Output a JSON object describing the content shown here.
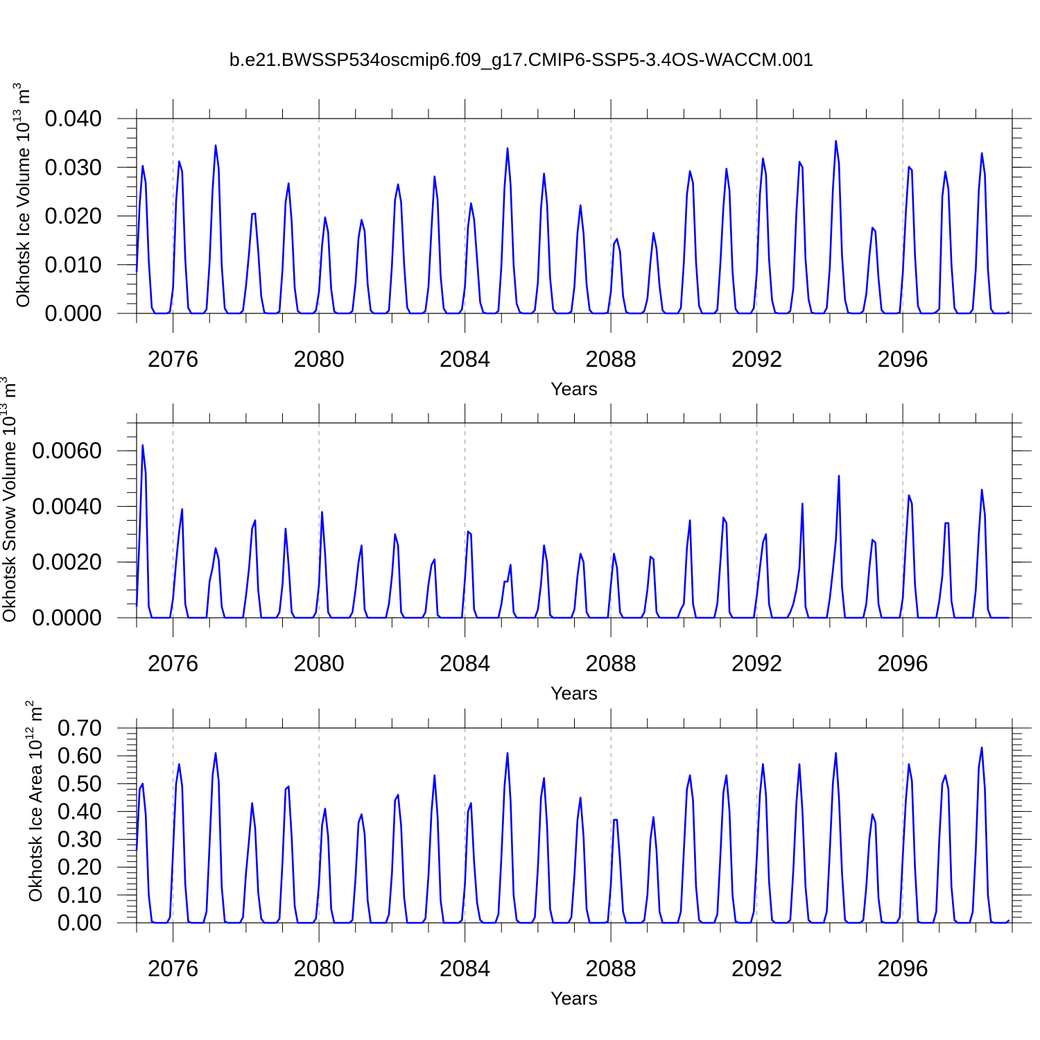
{
  "title": "b.e21.BWSSP534oscmip6.f09_g17.CMIP6-SSP5-3.4OS-WACCM.001",
  "colors": {
    "series": "#0000ff",
    "frame": "#000000",
    "grid": "#9a9a9a"
  },
  "chart_data": [
    {
      "type": "line",
      "name": "okhotsk-ice-volume",
      "title": "",
      "xlabel": "Years",
      "ylabel_main": "Okhotsk Ice Volume 10",
      "ylabel_sup": "13",
      "ylabel_unit": "m",
      "ylabel_unit_sup": "3",
      "xlim": [
        2075,
        2099
      ],
      "ylim": [
        0,
        0.04
      ],
      "x_ticks": [
        2076,
        2080,
        2084,
        2088,
        2092,
        2096
      ],
      "x_tick_labels": [
        "2076",
        "2080",
        "2084",
        "2088",
        "2092",
        "2096"
      ],
      "y_ticks": [
        0,
        0.01,
        0.02,
        0.03,
        0.04
      ],
      "y_tick_labels": [
        "0.000",
        "0.010",
        "0.020",
        "0.030",
        "0.040"
      ],
      "y_minor_step": 0.002,
      "grid": "vertical dashed at major x ticks",
      "series": [
        {
          "name": "Okhotsk Ice Volume",
          "start_year": 2075,
          "step": 0.08333333,
          "values": [
            0.0085,
            0.0222,
            0.0303,
            0.0268,
            0.0109,
            0.0012,
            0.0,
            0.0,
            0.0,
            0.0,
            0.0,
            0.0004,
            0.0053,
            0.023,
            0.0312,
            0.0291,
            0.0112,
            0.0011,
            0.0,
            0.0,
            0.0,
            0.0,
            0.0,
            0.0008,
            0.0104,
            0.0254,
            0.0345,
            0.0298,
            0.0099,
            0.001,
            0.0,
            0.0,
            0.0,
            0.0,
            0.0,
            0.0006,
            0.0057,
            0.0125,
            0.0204,
            0.0205,
            0.0128,
            0.0035,
            0.0002,
            0.0,
            0.0,
            0.0,
            0.0,
            0.0004,
            0.0091,
            0.0228,
            0.0267,
            0.0189,
            0.0053,
            0.0005,
            0.0,
            0.0,
            0.0,
            0.0,
            0.0,
            0.0006,
            0.0045,
            0.0139,
            0.0197,
            0.0167,
            0.005,
            0.0004,
            0.0,
            0.0,
            0.0,
            0.0,
            0.0,
            0.0005,
            0.0061,
            0.0155,
            0.0192,
            0.0169,
            0.006,
            0.0006,
            0.0,
            0.0,
            0.0,
            0.0,
            0.0,
            0.0006,
            0.01,
            0.0233,
            0.0265,
            0.0228,
            0.01,
            0.0012,
            0.0,
            0.0,
            0.0,
            0.0,
            0.0,
            0.0005,
            0.0055,
            0.0175,
            0.0281,
            0.0233,
            0.0077,
            0.001,
            0.0,
            0.0,
            0.0,
            0.0,
            0.0,
            0.0008,
            0.0055,
            0.0177,
            0.0226,
            0.0193,
            0.011,
            0.0023,
            0.0002,
            0.0,
            0.0,
            0.0,
            0.0,
            0.0005,
            0.01,
            0.0258,
            0.0339,
            0.0265,
            0.01,
            0.002,
            0.0003,
            0.0,
            0.0,
            0.0,
            0.0,
            0.0007,
            0.0065,
            0.0215,
            0.0287,
            0.0225,
            0.0073,
            0.0008,
            0.0,
            0.0,
            0.0,
            0.0,
            0.0,
            0.0004,
            0.0055,
            0.0165,
            0.0222,
            0.0164,
            0.006,
            0.0007,
            0.0,
            0.0,
            0.0,
            0.0,
            0.0,
            0.0002,
            0.0045,
            0.0143,
            0.0153,
            0.0127,
            0.0035,
            0.0003,
            0.0,
            0.0,
            0.0,
            0.0,
            0.0,
            0.0005,
            0.003,
            0.0105,
            0.0165,
            0.0133,
            0.0056,
            0.0006,
            0.0,
            0.0,
            0.0,
            0.0,
            0.0,
            0.0011,
            0.0105,
            0.0244,
            0.0292,
            0.0268,
            0.0105,
            0.0015,
            0.0,
            0.0,
            0.0,
            0.0,
            0.0,
            0.0007,
            0.0102,
            0.0219,
            0.0297,
            0.0252,
            0.0086,
            0.0009,
            0.0,
            0.0,
            0.0,
            0.0,
            0.0,
            0.0011,
            0.0085,
            0.0244,
            0.0318,
            0.0286,
            0.0112,
            0.0027,
            0.0002,
            0.0,
            0.0,
            0.0,
            0.0,
            0.0005,
            0.0052,
            0.0207,
            0.0311,
            0.03,
            0.0112,
            0.0029,
            0.0002,
            0.0,
            0.0,
            0.0,
            0.0,
            0.0011,
            0.0095,
            0.0254,
            0.0354,
            0.0309,
            0.012,
            0.0028,
            0.0002,
            0.0,
            0.0,
            0.0,
            0.0,
            0.0005,
            0.004,
            0.0117,
            0.0176,
            0.0168,
            0.0073,
            0.0007,
            0.0,
            0.0,
            0.0,
            0.0,
            0.0,
            0.0002,
            0.0083,
            0.0207,
            0.0301,
            0.0294,
            0.012,
            0.0015,
            0.0,
            0.0,
            0.0,
            0.0,
            0.0,
            0.0003,
            0.0009,
            0.024,
            0.0291,
            0.0256,
            0.0101,
            0.0011,
            0.0,
            0.0,
            0.0,
            0.0,
            0.0,
            0.0008,
            0.0091,
            0.0253,
            0.0329,
            0.0285,
            0.0091,
            0.0009,
            0.0,
            0.0,
            0.0,
            0.0,
            0.0,
            0.0003
          ]
        }
      ]
    },
    {
      "type": "line",
      "name": "okhotsk-snow-volume",
      "title": "",
      "xlabel": "Years",
      "ylabel_main": "Okhotsk Snow Volume 10",
      "ylabel_sup": "13",
      "ylabel_unit": "m",
      "ylabel_unit_sup": "3",
      "xlim": [
        2075,
        2099
      ],
      "ylim": [
        0,
        0.007
      ],
      "x_ticks": [
        2076,
        2080,
        2084,
        2088,
        2092,
        2096
      ],
      "x_tick_labels": [
        "2076",
        "2080",
        "2084",
        "2088",
        "2092",
        "2096"
      ],
      "y_ticks": [
        0,
        0.002,
        0.004,
        0.006
      ],
      "y_tick_labels": [
        "0.0000",
        "0.0020",
        "0.0040",
        "0.0060"
      ],
      "y_minor_step": 0.0005,
      "grid": "vertical dashed at major x ticks",
      "series": [
        {
          "name": "Okhotsk Snow Volume",
          "start_year": 2075,
          "step": 0.08333333,
          "values": [
            0.0004,
            0.003,
            0.0062,
            0.0052,
            0.0004,
            0.0,
            0.0,
            0.0,
            0.0,
            0.0,
            0.0,
            0.0,
            0.0007,
            0.002,
            0.0031,
            0.0039,
            0.0005,
            0.0,
            0.0,
            0.0,
            0.0,
            0.0,
            0.0,
            0.0,
            0.0013,
            0.0018,
            0.0025,
            0.0021,
            0.0004,
            0.0,
            0.0,
            0.0,
            0.0,
            0.0,
            0.0,
            0.0,
            0.0008,
            0.0018,
            0.0032,
            0.0035,
            0.001,
            0.0,
            0.0,
            0.0,
            0.0,
            0.0,
            0.0,
            0.0002,
            0.0012,
            0.0032,
            0.0019,
            0.0002,
            0.0,
            0.0,
            0.0,
            0.0,
            0.0,
            0.0,
            0.0,
            0.0002,
            0.0012,
            0.0038,
            0.0023,
            0.0002,
            0.0,
            0.0,
            0.0,
            0.0,
            0.0,
            0.0,
            0.0,
            0.0002,
            0.001,
            0.002,
            0.0026,
            0.0003,
            0.0,
            0.0,
            0.0,
            0.0,
            0.0,
            0.0,
            0.0,
            0.0005,
            0.0015,
            0.003,
            0.0026,
            0.0002,
            0.0,
            0.0,
            0.0,
            0.0,
            0.0,
            0.0,
            0.0,
            0.0002,
            0.0012,
            0.0019,
            0.0021,
            0.0001,
            0.0,
            0.0,
            0.0,
            0.0,
            0.0,
            0.0,
            0.0,
            0.0,
            0.0014,
            0.0031,
            0.003,
            0.0003,
            0.0,
            0.0,
            0.0,
            0.0,
            0.0,
            0.0,
            0.0,
            0.0,
            0.0005,
            0.0013,
            0.0013,
            0.0019,
            0.0002,
            0.0,
            0.0,
            0.0,
            0.0,
            0.0,
            0.0,
            0.0,
            0.0003,
            0.0012,
            0.0026,
            0.002,
            0.0001,
            0.0,
            0.0,
            0.0,
            0.0,
            0.0,
            0.0,
            0.0,
            0.0003,
            0.0015,
            0.0023,
            0.002,
            0.0002,
            0.0,
            0.0,
            0.0,
            0.0,
            0.0,
            0.0,
            0.0,
            0.0012,
            0.0023,
            0.0018,
            0.0002,
            0.0,
            0.0,
            0.0,
            0.0,
            0.0,
            0.0,
            0.0,
            0.0002,
            0.001,
            0.0022,
            0.0021,
            0.0002,
            0.0,
            0.0,
            0.0,
            0.0,
            0.0,
            0.0,
            0.0,
            0.0003,
            0.0005,
            0.0025,
            0.0035,
            0.0005,
            0.0,
            0.0,
            0.0,
            0.0,
            0.0,
            0.0,
            0.0,
            0.0005,
            0.002,
            0.0036,
            0.0034,
            0.0002,
            0.0,
            0.0,
            0.0,
            0.0,
            0.0,
            0.0,
            0.0,
            0.0,
            0.0008,
            0.0018,
            0.0027,
            0.003,
            0.0005,
            0.0,
            0.0,
            0.0,
            0.0,
            0.0,
            0.0,
            0.0002,
            0.0005,
            0.001,
            0.0018,
            0.0041,
            0.0004,
            0.0,
            0.0,
            0.0,
            0.0,
            0.0,
            0.0,
            0.0,
            0.0007,
            0.0017,
            0.0028,
            0.0051,
            0.0011,
            0.0,
            0.0,
            0.0,
            0.0,
            0.0,
            0.0,
            0.0,
            0.0005,
            0.0018,
            0.0028,
            0.0027,
            0.0005,
            0.0,
            0.0,
            0.0,
            0.0,
            0.0,
            0.0,
            0.0,
            0.0007,
            0.0027,
            0.0044,
            0.0041,
            0.0012,
            0.0,
            0.0,
            0.0,
            0.0,
            0.0,
            0.0,
            0.0,
            0.0006,
            0.0015,
            0.0034,
            0.0034,
            0.0006,
            0.0,
            0.0,
            0.0,
            0.0,
            0.0,
            0.0,
            0.0,
            0.001,
            0.003,
            0.0046,
            0.0037,
            0.0003,
            0.0,
            0.0,
            0.0,
            0.0,
            0.0,
            0.0,
            0.0
          ]
        }
      ]
    },
    {
      "type": "line",
      "name": "okhotsk-ice-area",
      "title": "",
      "xlabel": "Years",
      "ylabel_main": "Okhotsk Ice Area 10",
      "ylabel_sup": "12",
      "ylabel_unit": "m",
      "ylabel_unit_sup": "2",
      "xlim": [
        2075,
        2099
      ],
      "ylim": [
        0,
        0.7
      ],
      "x_ticks": [
        2076,
        2080,
        2084,
        2088,
        2092,
        2096
      ],
      "x_tick_labels": [
        "2076",
        "2080",
        "2084",
        "2088",
        "2092",
        "2096"
      ],
      "y_ticks": [
        0,
        0.1,
        0.2,
        0.3,
        0.4,
        0.5,
        0.6,
        0.7
      ],
      "y_tick_labels": [
        "0.00",
        "0.10",
        "0.20",
        "0.30",
        "0.40",
        "0.50",
        "0.60",
        "0.70"
      ],
      "y_minor_step": 0.02,
      "grid": "vertical dashed at major x ticks",
      "series": [
        {
          "name": "Okhotsk Ice Area",
          "start_year": 2075,
          "step": 0.08333333,
          "values": [
            0.26,
            0.48,
            0.5,
            0.39,
            0.1,
            0.005,
            0.0,
            0.0,
            0.0,
            0.0,
            0.0,
            0.02,
            0.26,
            0.5,
            0.57,
            0.49,
            0.14,
            0.005,
            0.0,
            0.0,
            0.0,
            0.0,
            0.0,
            0.04,
            0.28,
            0.53,
            0.61,
            0.51,
            0.13,
            0.005,
            0.0,
            0.0,
            0.0,
            0.0,
            0.0,
            0.02,
            0.18,
            0.3,
            0.43,
            0.34,
            0.11,
            0.015,
            0.0,
            0.0,
            0.0,
            0.0,
            0.0,
            0.015,
            0.22,
            0.48,
            0.49,
            0.31,
            0.06,
            0.0,
            0.0,
            0.0,
            0.0,
            0.0,
            0.0,
            0.015,
            0.14,
            0.35,
            0.41,
            0.31,
            0.05,
            0.0,
            0.0,
            0.0,
            0.0,
            0.0,
            0.0,
            0.01,
            0.16,
            0.36,
            0.39,
            0.32,
            0.08,
            0.0,
            0.0,
            0.0,
            0.0,
            0.0,
            0.0,
            0.03,
            0.18,
            0.44,
            0.46,
            0.35,
            0.09,
            0.0,
            0.0,
            0.0,
            0.0,
            0.0,
            0.0,
            0.015,
            0.17,
            0.4,
            0.53,
            0.38,
            0.08,
            0.0,
            0.0,
            0.0,
            0.0,
            0.0,
            0.0,
            0.01,
            0.14,
            0.4,
            0.43,
            0.22,
            0.07,
            0.01,
            0.0,
            0.0,
            0.0,
            0.0,
            0.0,
            0.03,
            0.24,
            0.49,
            0.61,
            0.44,
            0.1,
            0.01,
            0.0,
            0.0,
            0.0,
            0.0,
            0.0,
            0.02,
            0.2,
            0.45,
            0.52,
            0.35,
            0.05,
            0.0,
            0.0,
            0.0,
            0.0,
            0.0,
            0.0,
            0.02,
            0.17,
            0.37,
            0.45,
            0.31,
            0.05,
            0.0,
            0.0,
            0.0,
            0.0,
            0.0,
            0.0,
            0.005,
            0.14,
            0.37,
            0.37,
            0.22,
            0.04,
            0.0,
            0.0,
            0.0,
            0.0,
            0.0,
            0.0,
            0.01,
            0.1,
            0.3,
            0.38,
            0.26,
            0.04,
            0.0,
            0.0,
            0.0,
            0.0,
            0.0,
            0.0,
            0.04,
            0.26,
            0.48,
            0.53,
            0.44,
            0.13,
            0.01,
            0.0,
            0.0,
            0.0,
            0.0,
            0.0,
            0.03,
            0.24,
            0.47,
            0.53,
            0.4,
            0.1,
            0.005,
            0.0,
            0.0,
            0.0,
            0.0,
            0.0,
            0.04,
            0.24,
            0.46,
            0.57,
            0.46,
            0.15,
            0.01,
            0.0,
            0.0,
            0.0,
            0.0,
            0.0,
            0.01,
            0.19,
            0.43,
            0.57,
            0.4,
            0.13,
            0.01,
            0.0,
            0.0,
            0.0,
            0.0,
            0.0,
            0.04,
            0.26,
            0.5,
            0.61,
            0.45,
            0.18,
            0.01,
            0.0,
            0.0,
            0.0,
            0.0,
            0.0,
            0.01,
            0.13,
            0.3,
            0.39,
            0.36,
            0.09,
            0.005,
            0.0,
            0.0,
            0.0,
            0.0,
            0.0,
            0.02,
            0.24,
            0.44,
            0.57,
            0.51,
            0.2,
            0.005,
            0.0,
            0.0,
            0.0,
            0.0,
            0.0,
            0.04,
            0.3,
            0.5,
            0.53,
            0.48,
            0.13,
            0.01,
            0.0,
            0.0,
            0.0,
            0.0,
            0.0,
            0.04,
            0.26,
            0.56,
            0.63,
            0.48,
            0.1,
            0.005,
            0.0,
            0.0,
            0.0,
            0.0,
            0.0,
            0.01
          ]
        }
      ]
    }
  ]
}
